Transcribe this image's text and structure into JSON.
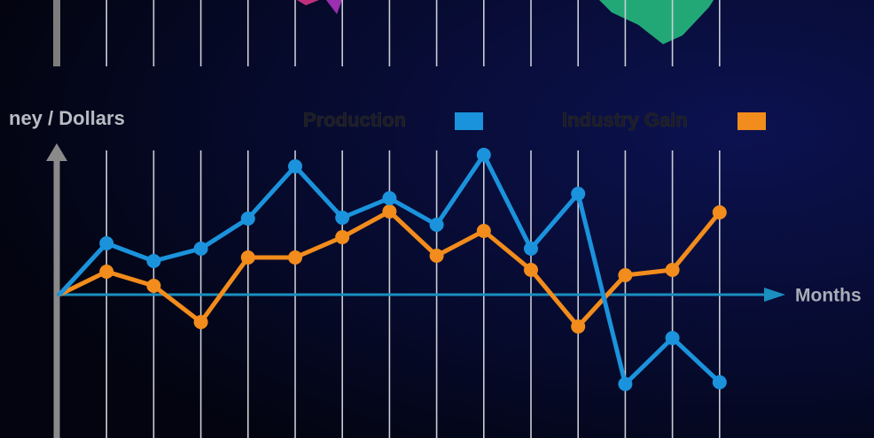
{
  "chart_data": {
    "type": "line",
    "y_label": "ney / Dollars",
    "x_label": "Months",
    "categories": [
      null,
      null,
      null,
      null,
      null,
      null,
      null,
      null,
      null,
      null,
      null,
      null,
      null,
      null,
      null
    ],
    "ylim": [
      -16,
      16
    ],
    "series": [
      {
        "name": "Production",
        "color": "#1b93dc",
        "values": [
          0,
          5.8,
          3.8,
          5.2,
          8.6,
          14.5,
          8.7,
          10.9,
          7.9,
          15.8,
          5.2,
          11.4,
          -10.1,
          -4.9,
          -9.9
        ]
      },
      {
        "name": "Industry Gain",
        "color": "#f28c1c",
        "values": [
          0,
          2.6,
          1.0,
          -3.1,
          4.2,
          4.2,
          6.5,
          9.4,
          4.4,
          7.2,
          2.8,
          -3.6,
          2.2,
          2.8,
          9.3
        ]
      }
    ]
  }
}
